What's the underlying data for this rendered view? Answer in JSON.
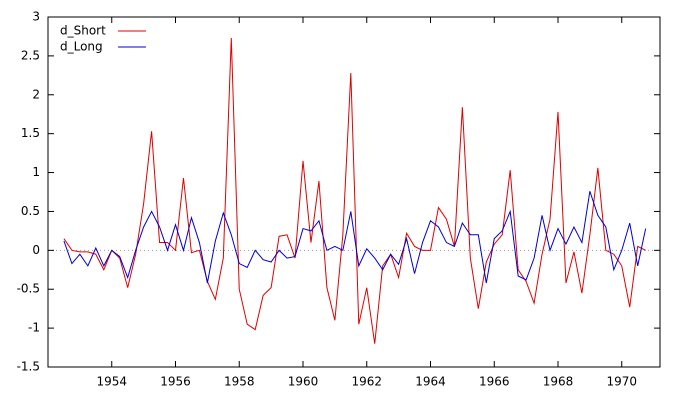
{
  "chart_data": {
    "type": "line",
    "x": [
      1952.5,
      1952.75,
      1953,
      1953.25,
      1953.5,
      1953.75,
      1954,
      1954.25,
      1954.5,
      1954.75,
      1955,
      1955.25,
      1955.5,
      1955.75,
      1956,
      1956.25,
      1956.5,
      1956.75,
      1957,
      1957.25,
      1957.5,
      1957.75,
      1958,
      1958.25,
      1958.5,
      1958.75,
      1959,
      1959.25,
      1959.5,
      1959.75,
      1960,
      1960.25,
      1960.5,
      1960.75,
      1961,
      1961.25,
      1961.5,
      1961.75,
      1962,
      1962.25,
      1962.5,
      1962.75,
      1963,
      1963.25,
      1963.5,
      1963.75,
      1964,
      1964.25,
      1964.5,
      1964.75,
      1965,
      1965.25,
      1965.5,
      1965.75,
      1966,
      1966.25,
      1966.5,
      1966.75,
      1967,
      1967.25,
      1967.5,
      1967.75,
      1968,
      1968.25,
      1968.5,
      1968.75,
      1969,
      1969.25,
      1969.5,
      1969.75,
      1970,
      1970.25,
      1970.5,
      1970.75
    ],
    "series": [
      {
        "name": "d_Short",
        "color": "#e00000",
        "values": [
          0.15,
          0.0,
          -0.02,
          -0.02,
          -0.05,
          -0.25,
          0.0,
          -0.1,
          -0.48,
          -0.05,
          0.6,
          1.53,
          0.1,
          0.1,
          0.0,
          0.93,
          -0.03,
          0.0,
          -0.4,
          -0.63,
          -0.1,
          2.73,
          -0.5,
          -0.95,
          -1.02,
          -0.58,
          -0.48,
          0.18,
          0.2,
          -0.1,
          1.15,
          0.1,
          0.89,
          -0.48,
          -0.9,
          0.2,
          2.28,
          -0.95,
          -0.48,
          -1.2,
          -0.2,
          -0.05,
          -0.35,
          0.22,
          0.05,
          0.0,
          0.0,
          0.55,
          0.4,
          0.05,
          1.84,
          -0.1,
          -0.75,
          -0.15,
          0.08,
          0.2,
          1.03,
          -0.25,
          -0.4,
          -0.68,
          -0.05,
          0.4,
          1.78,
          -0.42,
          -0.02,
          -0.55,
          0.2,
          1.06,
          0.0,
          -0.05,
          -0.2,
          -0.73,
          0.05,
          0.0
        ]
      },
      {
        "name": "d_Long",
        "color": "#0000d0",
        "values": [
          0.12,
          -0.17,
          -0.05,
          -0.2,
          0.03,
          -0.2,
          0.0,
          -0.08,
          -0.35,
          0.0,
          0.3,
          0.5,
          0.3,
          0.0,
          0.33,
          0.0,
          0.42,
          0.1,
          -0.42,
          0.12,
          0.48,
          0.2,
          -0.17,
          -0.22,
          0.0,
          -0.12,
          -0.15,
          0.0,
          -0.1,
          -0.08,
          0.28,
          0.25,
          0.38,
          0.0,
          0.05,
          0.0,
          0.5,
          -0.2,
          0.02,
          -0.1,
          -0.25,
          -0.05,
          -0.18,
          0.15,
          -0.3,
          0.1,
          0.38,
          0.3,
          0.1,
          0.05,
          0.35,
          0.2,
          0.2,
          -0.42,
          0.15,
          0.25,
          0.5,
          -0.33,
          -0.38,
          -0.1,
          0.45,
          0.0,
          0.28,
          0.08,
          0.3,
          0.1,
          0.76,
          0.45,
          0.3,
          -0.25,
          0.0,
          0.35,
          -0.2,
          0.28
        ]
      }
    ],
    "xlim": [
      1952,
      1971.2
    ],
    "xticks": [
      1954,
      1956,
      1958,
      1960,
      1962,
      1964,
      1966,
      1968,
      1970
    ],
    "ylim": [
      -1.5,
      3
    ],
    "yticks": [
      -1.5,
      -1,
      -0.5,
      0,
      0.5,
      1,
      1.5,
      2,
      2.5,
      3
    ],
    "zero_line": true,
    "legend": "top-left"
  }
}
